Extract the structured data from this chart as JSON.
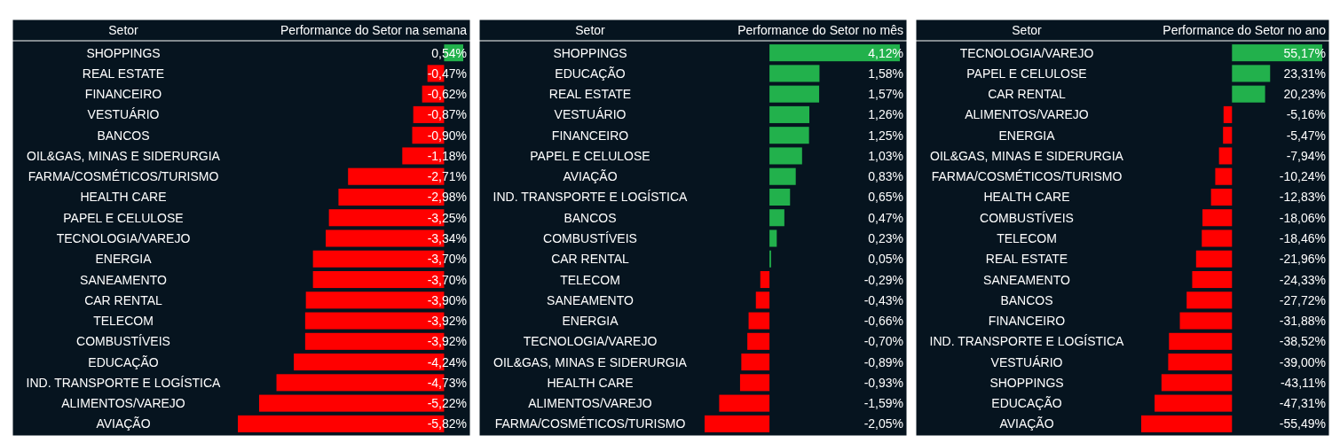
{
  "chart_data": [
    {
      "type": "bar",
      "orientation": "horizontal",
      "ylabel": "Setor",
      "xlabel": "Performance do Setor na semana",
      "categories": [
        "SHOPPINGS",
        "REAL ESTATE",
        "FINANCEIRO",
        "VESTUÁRIO",
        "BANCOS",
        "OIL&GAS, MINAS E SIDERURGIA",
        "FARMA/COSMÉTICOS/TURISMO",
        "HEALTH CARE",
        "PAPEL E CELULOSE",
        "TECNOLOGIA/VAREJO",
        "ENERGIA",
        "SANEAMENTO",
        "CAR RENTAL",
        "TELECOM",
        "COMBUSTÍVEIS",
        "EDUCAÇÃO",
        "IND. TRANSPORTE E LOGÍSTICA",
        "ALIMENTOS/VAREJO",
        "AVIAÇÃO"
      ],
      "values": [
        0.54,
        -0.47,
        -0.62,
        -0.87,
        -0.9,
        -1.18,
        -2.71,
        -2.98,
        -3.25,
        -3.34,
        -3.7,
        -3.7,
        -3.9,
        -3.92,
        -3.92,
        -4.24,
        -4.73,
        -5.22,
        -5.82
      ],
      "value_labels": [
        "0,54%",
        "-0,47%",
        "-0,62%",
        "-0,87%",
        "-0,90%",
        "-1,18%",
        "-2,71%",
        "-2,98%",
        "-3,25%",
        "-3,34%",
        "-3,70%",
        "-3,70%",
        "-3,90%",
        "-3,92%",
        "-3,92%",
        "-4,24%",
        "-4,73%",
        "-5,22%",
        "-5,82%"
      ],
      "colors": [
        "#22b14c",
        "#ff0000",
        "#ff0000",
        "#ff0000",
        "#ff0000",
        "#ff0000",
        "#ff0000",
        "#ff0000",
        "#ff0000",
        "#ff0000",
        "#ff0000",
        "#ff0000",
        "#ff0000",
        "#ff0000",
        "#ff0000",
        "#ff0000",
        "#ff0000",
        "#ff0000",
        "#ff0000"
      ]
    },
    {
      "type": "bar",
      "orientation": "horizontal",
      "ylabel": "Setor",
      "xlabel": "Performance do Setor no mês",
      "categories": [
        "SHOPPINGS",
        "EDUCAÇÃO",
        "REAL ESTATE",
        "VESTUÁRIO",
        "FINANCEIRO",
        "PAPEL E CELULOSE",
        "AVIAÇÃO",
        "IND. TRANSPORTE E LOGÍSTICA",
        "BANCOS",
        "COMBUSTÍVEIS",
        "CAR RENTAL",
        "TELECOM",
        "SANEAMENTO",
        "ENERGIA",
        "TECNOLOGIA/VAREJO",
        "OIL&GAS, MINAS E SIDERURGIA",
        "HEALTH CARE",
        "ALIMENTOS/VAREJO",
        "FARMA/COSMÉTICOS/TURISMO"
      ],
      "values": [
        4.12,
        1.58,
        1.57,
        1.26,
        1.25,
        1.03,
        0.83,
        0.65,
        0.47,
        0.23,
        0.05,
        -0.29,
        -0.43,
        -0.66,
        -0.7,
        -0.89,
        -0.93,
        -1.59,
        -2.05
      ],
      "value_labels": [
        "4,12%",
        "1,58%",
        "1,57%",
        "1,26%",
        "1,25%",
        "1,03%",
        "0,83%",
        "0,65%",
        "0,47%",
        "0,23%",
        "0,05%",
        "-0,29%",
        "-0,43%",
        "-0,66%",
        "-0,70%",
        "-0,89%",
        "-0,93%",
        "-1,59%",
        "-2,05%"
      ],
      "colors": [
        "#22b14c",
        "#22b14c",
        "#22b14c",
        "#22b14c",
        "#22b14c",
        "#22b14c",
        "#22b14c",
        "#22b14c",
        "#22b14c",
        "#22b14c",
        "#22b14c",
        "#ff0000",
        "#ff0000",
        "#ff0000",
        "#ff0000",
        "#ff0000",
        "#ff0000",
        "#ff0000",
        "#ff0000"
      ]
    },
    {
      "type": "bar",
      "orientation": "horizontal",
      "ylabel": "Setor",
      "xlabel": "Performance do Setor no ano",
      "categories": [
        "TECNOLOGIA/VAREJO",
        "PAPEL E CELULOSE",
        "CAR RENTAL",
        "ALIMENTOS/VAREJO",
        "ENERGIA",
        "OIL&GAS, MINAS E SIDERURGIA",
        "FARMA/COSMÉTICOS/TURISMO",
        "HEALTH CARE",
        "COMBUSTÍVEIS",
        "TELECOM",
        "REAL ESTATE",
        "SANEAMENTO",
        "BANCOS",
        "FINANCEIRO",
        "IND. TRANSPORTE E LOGÍSTICA",
        "VESTUÁRIO",
        "SHOPPINGS",
        "EDUCAÇÃO",
        "AVIAÇÃO"
      ],
      "values": [
        55.17,
        23.31,
        20.23,
        -5.16,
        -5.47,
        -7.94,
        -10.24,
        -12.83,
        -18.06,
        -18.46,
        -21.96,
        -24.33,
        -27.72,
        -31.88,
        -38.52,
        -39.0,
        -43.11,
        -47.31,
        -55.49
      ],
      "value_labels": [
        "55,17%",
        "23,31%",
        "20,23%",
        "-5,16%",
        "-5,47%",
        "-7,94%",
        "-10,24%",
        "-12,83%",
        "-18,06%",
        "-18,46%",
        "-21,96%",
        "-24,33%",
        "-27,72%",
        "-31,88%",
        "-38,52%",
        "-39,00%",
        "-43,11%",
        "-47,31%",
        "-55,49%"
      ],
      "colors": [
        "#22b14c",
        "#22b14c",
        "#22b14c",
        "#ff0000",
        "#ff0000",
        "#ff0000",
        "#ff0000",
        "#ff0000",
        "#ff0000",
        "#ff0000",
        "#ff0000",
        "#ff0000",
        "#ff0000",
        "#ff0000",
        "#ff0000",
        "#ff0000",
        "#ff0000",
        "#ff0000",
        "#ff0000"
      ]
    }
  ]
}
